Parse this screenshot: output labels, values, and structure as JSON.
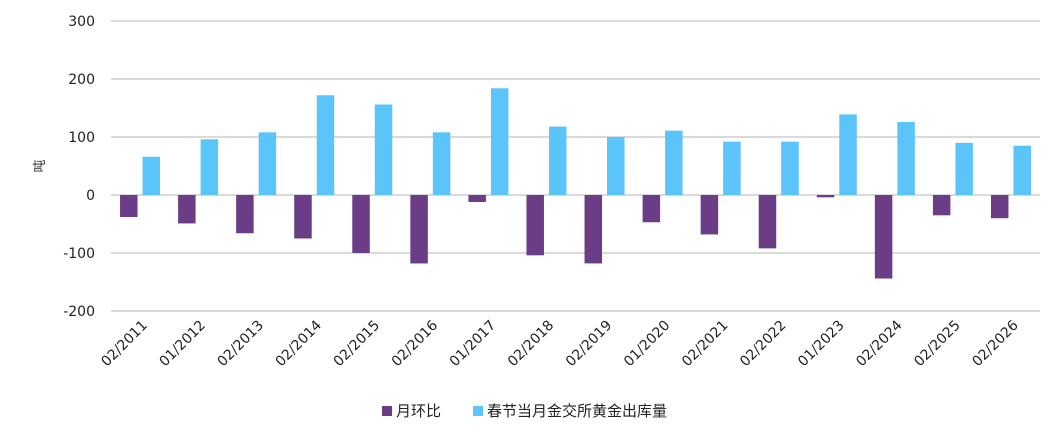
{
  "chart_data": {
    "type": "bar",
    "title": "",
    "xlabel": "",
    "ylabel": "吨",
    "ylim": [
      -200,
      300
    ],
    "yticks": [
      300,
      200,
      100,
      0,
      -100,
      -200
    ],
    "grid": true,
    "legend_position": "bottom-center",
    "categories": [
      "02/2011",
      "01/2012",
      "02/2013",
      "02/2014",
      "02/2015",
      "02/2016",
      "01/2017",
      "02/2018",
      "02/2019",
      "01/2020",
      "02/2021",
      "02/2022",
      "01/2023",
      "02/2024",
      "02/2025",
      "02/2026"
    ],
    "series": [
      {
        "name": "月环比",
        "color": "#6b3d86",
        "values": [
          -38,
          -49,
          -66,
          -75,
          -100,
          -118,
          -12,
          -104,
          -118,
          -47,
          -68,
          -92,
          -4,
          -144,
          -35,
          -40
        ]
      },
      {
        "name": "春节当月金交所黄金出库量",
        "color": "#5bc4f8",
        "values": [
          66,
          96,
          108,
          172,
          156,
          108,
          184,
          118,
          100,
          111,
          92,
          92,
          139,
          126,
          90,
          85
        ]
      }
    ]
  }
}
